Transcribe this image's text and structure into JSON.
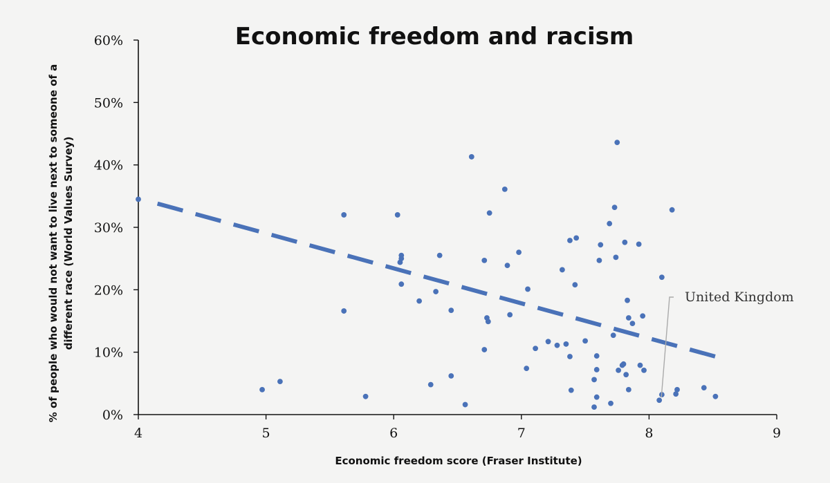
{
  "chart_data": {
    "type": "scatter",
    "title": "Economic freedom and racism",
    "xlabel": "Economic freedom score (Fraser Institute)",
    "ylabel_lines": [
      "% of people who would not want to live next to someone of a",
      "different race (World Values Survey)"
    ],
    "xlim": [
      4,
      9
    ],
    "ylim": [
      0,
      60
    ],
    "x_ticks": [
      "4",
      "5",
      "6",
      "7",
      "8",
      "9"
    ],
    "y_ticks": [
      "0%",
      "10%",
      "20%",
      "30%",
      "40%",
      "50%",
      "60%"
    ],
    "grid": false,
    "legend": "none",
    "colors": {
      "points": "#4a72b8",
      "trend": "#4a72b8",
      "axis": "#111111",
      "annotation_line": "#aaaaaa"
    },
    "trendline": {
      "style": "dashed",
      "x": [
        4.15,
        8.52
      ],
      "y": [
        33.8,
        9.3
      ]
    },
    "annotation": {
      "text": "United Kingdom",
      "x": 8.08,
      "y": 2.3
    },
    "points": [
      [
        4.0,
        34.5
      ],
      [
        4.97,
        4.0
      ],
      [
        5.11,
        5.3
      ],
      [
        5.61,
        32.0
      ],
      [
        5.61,
        16.6
      ],
      [
        5.78,
        2.9
      ],
      [
        6.03,
        32.0
      ],
      [
        6.05,
        24.4
      ],
      [
        6.06,
        25.0
      ],
      [
        6.06,
        25.5
      ],
      [
        6.06,
        20.9
      ],
      [
        6.2,
        18.2
      ],
      [
        6.29,
        4.8
      ],
      [
        6.33,
        19.7
      ],
      [
        6.36,
        25.5
      ],
      [
        6.45,
        16.7
      ],
      [
        6.45,
        6.2
      ],
      [
        6.56,
        1.6
      ],
      [
        6.61,
        41.3
      ],
      [
        6.71,
        24.7
      ],
      [
        6.71,
        10.4
      ],
      [
        6.73,
        15.5
      ],
      [
        6.74,
        14.9
      ],
      [
        6.75,
        32.3
      ],
      [
        6.87,
        36.1
      ],
      [
        6.89,
        23.9
      ],
      [
        6.91,
        16.0
      ],
      [
        6.98,
        26.0
      ],
      [
        7.04,
        7.4
      ],
      [
        7.05,
        20.1
      ],
      [
        7.11,
        10.6
      ],
      [
        7.21,
        11.7
      ],
      [
        7.28,
        11.1
      ],
      [
        7.32,
        23.2
      ],
      [
        7.35,
        11.3
      ],
      [
        7.38,
        27.9
      ],
      [
        7.38,
        9.3
      ],
      [
        7.39,
        3.9
      ],
      [
        7.42,
        20.8
      ],
      [
        7.43,
        28.3
      ],
      [
        7.5,
        11.8
      ],
      [
        7.57,
        5.6
      ],
      [
        7.57,
        1.2
      ],
      [
        7.59,
        9.4
      ],
      [
        7.59,
        7.2
      ],
      [
        7.59,
        2.8
      ],
      [
        7.61,
        24.7
      ],
      [
        7.62,
        27.2
      ],
      [
        7.69,
        30.6
      ],
      [
        7.7,
        1.8
      ],
      [
        7.72,
        12.7
      ],
      [
        7.73,
        33.2
      ],
      [
        7.74,
        25.2
      ],
      [
        7.75,
        43.6
      ],
      [
        7.76,
        7.1
      ],
      [
        7.79,
        7.9
      ],
      [
        7.8,
        8.1
      ],
      [
        7.81,
        27.6
      ],
      [
        7.82,
        6.4
      ],
      [
        7.83,
        18.3
      ],
      [
        7.84,
        15.5
      ],
      [
        7.84,
        4.0
      ],
      [
        7.87,
        14.6
      ],
      [
        7.92,
        27.3
      ],
      [
        7.93,
        7.9
      ],
      [
        7.95,
        15.8
      ],
      [
        7.96,
        7.1
      ],
      [
        8.08,
        2.3
      ],
      [
        8.1,
        22.0
      ],
      [
        8.1,
        3.2
      ],
      [
        8.18,
        32.8
      ],
      [
        8.21,
        3.3
      ],
      [
        8.22,
        4.0
      ],
      [
        8.43,
        4.3
      ],
      [
        8.52,
        2.9
      ]
    ]
  }
}
